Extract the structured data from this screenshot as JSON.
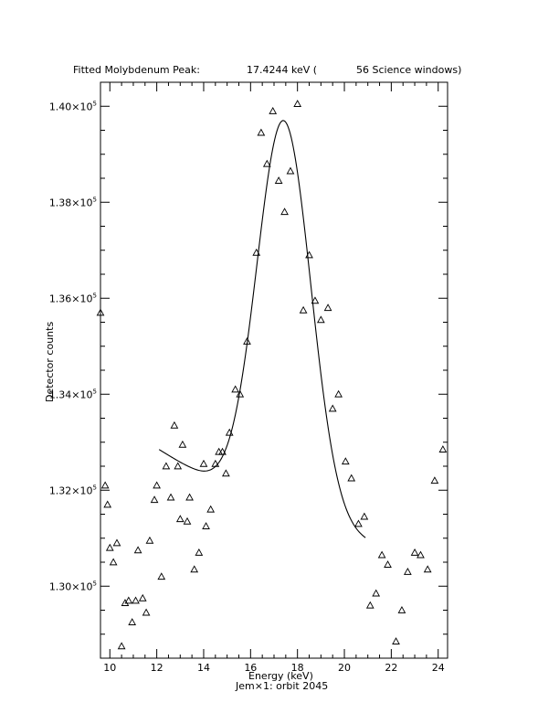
{
  "header": {
    "title": "Fitted Molybdenum Peak:",
    "peak_value": "17.4244 keV (",
    "window_info": "56 Science windows)"
  },
  "footer": {
    "subtitle": "Jem×1: orbit 2045"
  },
  "chart_data": {
    "type": "scatter",
    "xlabel": "Energy (keV)",
    "ylabel": "Detector counts",
    "xlim": [
      9.6,
      24.4
    ],
    "ylim": [
      128500,
      140500
    ],
    "x_ticks": [
      {
        "value": 10,
        "label": "10"
      },
      {
        "value": 12,
        "label": "12"
      },
      {
        "value": 14,
        "label": "14"
      },
      {
        "value": 16,
        "label": "16"
      },
      {
        "value": 18,
        "label": "18"
      },
      {
        "value": 20,
        "label": "20"
      },
      {
        "value": 22,
        "label": "22"
      },
      {
        "value": 24,
        "label": "24"
      }
    ],
    "y_ticks": [
      {
        "value": 130000,
        "mantissa": "1.30×10",
        "exp": "5"
      },
      {
        "value": 132000,
        "mantissa": "1.32×10",
        "exp": "5"
      },
      {
        "value": 134000,
        "mantissa": "1.34×10",
        "exp": "5"
      },
      {
        "value": 136000,
        "mantissa": "1.36×10",
        "exp": "5"
      },
      {
        "value": 138000,
        "mantissa": "1.38×10",
        "exp": "5"
      },
      {
        "value": 140000,
        "mantissa": "1.40×10",
        "exp": "5"
      }
    ],
    "marker": "triangle",
    "series": [
      {
        "values": [
          [
            9.6,
            135700
          ],
          [
            9.8,
            132100
          ],
          [
            9.9,
            131700
          ],
          [
            10.0,
            130800
          ],
          [
            10.15,
            130500
          ],
          [
            10.3,
            130900
          ],
          [
            10.5,
            128750
          ],
          [
            10.65,
            129650
          ],
          [
            10.8,
            129700
          ],
          [
            10.95,
            129250
          ],
          [
            11.1,
            129700
          ],
          [
            11.2,
            130750
          ],
          [
            11.4,
            129750
          ],
          [
            11.55,
            129450
          ],
          [
            11.7,
            130950
          ],
          [
            11.9,
            131800
          ],
          [
            12.0,
            132100
          ],
          [
            12.2,
            130200
          ],
          [
            12.4,
            132500
          ],
          [
            12.6,
            131850
          ],
          [
            12.75,
            133350
          ],
          [
            12.9,
            132500
          ],
          [
            13.0,
            131400
          ],
          [
            13.1,
            132950
          ],
          [
            13.3,
            131350
          ],
          [
            13.4,
            131850
          ],
          [
            13.6,
            130350
          ],
          [
            13.8,
            130700
          ],
          [
            14.0,
            132550
          ],
          [
            14.1,
            131250
          ],
          [
            14.3,
            131600
          ],
          [
            14.5,
            132550
          ],
          [
            14.65,
            132800
          ],
          [
            14.8,
            132800
          ],
          [
            14.95,
            132350
          ],
          [
            15.1,
            133200
          ],
          [
            15.35,
            134100
          ],
          [
            15.55,
            134000
          ],
          [
            15.85,
            135100
          ],
          [
            16.25,
            136950
          ],
          [
            16.45,
            139450
          ],
          [
            16.7,
            138800
          ],
          [
            16.95,
            139900
          ],
          [
            17.2,
            138450
          ],
          [
            17.45,
            137800
          ],
          [
            17.7,
            138650
          ],
          [
            18.0,
            140050
          ],
          [
            18.25,
            135750
          ],
          [
            18.5,
            136900
          ],
          [
            18.75,
            135950
          ],
          [
            19.0,
            135550
          ],
          [
            19.3,
            135800
          ],
          [
            19.5,
            133700
          ],
          [
            19.75,
            134000
          ],
          [
            20.05,
            132600
          ],
          [
            20.3,
            132250
          ],
          [
            20.6,
            131300
          ],
          [
            20.85,
            131450
          ],
          [
            21.1,
            129600
          ],
          [
            21.35,
            129850
          ],
          [
            21.6,
            130650
          ],
          [
            21.85,
            130450
          ],
          [
            22.2,
            128850
          ],
          [
            22.45,
            129500
          ],
          [
            22.7,
            130300
          ],
          [
            23.0,
            130700
          ],
          [
            23.25,
            130650
          ],
          [
            23.55,
            130350
          ],
          [
            23.85,
            132200
          ],
          [
            24.2,
            132850
          ]
        ]
      }
    ],
    "fit": {
      "type": "gaussian_on_quadratic",
      "peak_energy": 17.4244,
      "x_range": [
        12.1,
        20.9
      ],
      "amplitude": 8200,
      "sigma": 1.15,
      "baseline": [
        131500,
        -200,
        10
      ]
    }
  }
}
